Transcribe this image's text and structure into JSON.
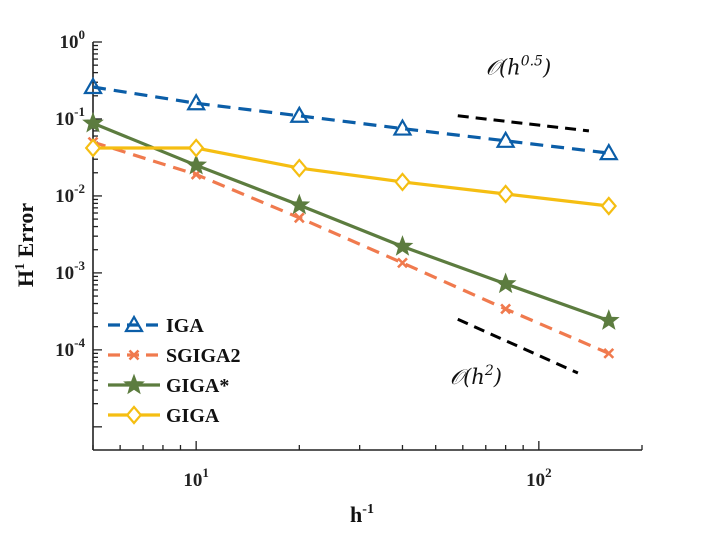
{
  "chart_data": {
    "type": "line",
    "title": "",
    "xlabel": {
      "base": "h",
      "sup": "-1"
    },
    "ylabel": {
      "base": "H",
      "sup": "1",
      "rest": " Error"
    },
    "xscale": "log",
    "yscale": "log",
    "xlim": [
      5,
      200
    ],
    "ylim": [
      5e-06,
      1
    ],
    "grid": false,
    "legend_position": "bottom-left",
    "x_ticks": [
      {
        "value": 10,
        "base": "10",
        "exp": "1"
      },
      {
        "value": 100,
        "base": "10",
        "exp": "2"
      }
    ],
    "y_ticks": [
      {
        "value": 1,
        "base": "10",
        "exp": "0"
      },
      {
        "value": 0.1,
        "base": "10",
        "exp": "-1"
      },
      {
        "value": 0.01,
        "base": "10",
        "exp": "-2"
      },
      {
        "value": 0.001,
        "base": "10",
        "exp": "-3"
      },
      {
        "value": 0.0001,
        "base": "10",
        "exp": "-4"
      }
    ],
    "series": [
      {
        "name": "IGA",
        "color": "#0b5ea8",
        "dash": "dashed",
        "marker": "triangle",
        "x": [
          5,
          10,
          20,
          40,
          80,
          160
        ],
        "y": [
          0.26,
          0.16,
          0.11,
          0.075,
          0.052,
          0.036
        ]
      },
      {
        "name": "SGIGA2",
        "color": "#f07a4e",
        "dash": "dashed",
        "marker": "x",
        "x": [
          5,
          10,
          20,
          40,
          80,
          160
        ],
        "y": [
          0.05,
          0.019,
          0.0052,
          0.00135,
          0.00034,
          9e-05
        ]
      },
      {
        "name": "GIGA*",
        "color": "#5c7c3f",
        "dash": "solid",
        "marker": "star",
        "x": [
          5,
          10,
          20,
          40,
          80,
          160
        ],
        "y": [
          0.088,
          0.025,
          0.0076,
          0.0022,
          0.00072,
          0.00024
        ]
      },
      {
        "name": "GIGA",
        "color": "#f5be12",
        "dash": "solid",
        "marker": "diamond",
        "x": [
          5,
          10,
          20,
          40,
          80,
          160
        ],
        "y": [
          0.042,
          0.042,
          0.023,
          0.0152,
          0.0106,
          0.0074
        ]
      }
    ],
    "reference_lines": [
      {
        "label_prefix": "𝒪(h",
        "label_sup": "0.5",
        "label_suffix": ")",
        "x": [
          58,
          140
        ],
        "y": [
          0.11,
          0.07
        ],
        "label_at": [
          70,
          0.38
        ]
      },
      {
        "label_prefix": "𝒪(h",
        "label_sup": "2",
        "label_suffix": ")",
        "x": [
          58,
          130
        ],
        "y": [
          0.00025,
          5e-05
        ],
        "label_at": [
          55,
          3.6e-05
        ]
      }
    ]
  }
}
